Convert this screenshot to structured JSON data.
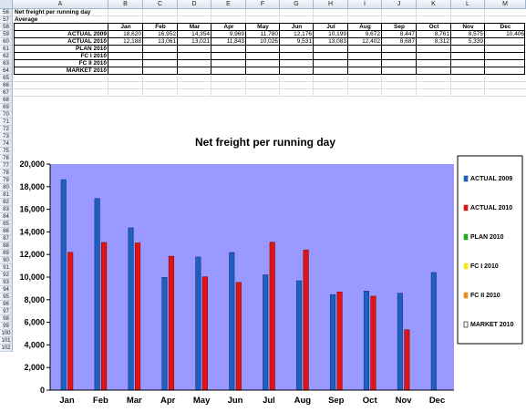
{
  "columns": [
    "A",
    "B",
    "C",
    "D",
    "E",
    "F",
    "G",
    "H",
    "I",
    "J",
    "K",
    "L",
    "M"
  ],
  "row_numbers": [
    56,
    57,
    58,
    59,
    60,
    61,
    62,
    63,
    64,
    65,
    66,
    67,
    68,
    69,
    70,
    71,
    72,
    73,
    74,
    75,
    76,
    77,
    78,
    79,
    80,
    81,
    82,
    83,
    84,
    85,
    86,
    87,
    88,
    89,
    90,
    91,
    92,
    93,
    94,
    95,
    96,
    97,
    98,
    99,
    100,
    101,
    102
  ],
  "sheet": {
    "title": "Net freight per running day",
    "subtitle": "Average",
    "months": [
      "Jan",
      "Feb",
      "Mar",
      "Apr",
      "May",
      "Jun",
      "Jul",
      "Aug",
      "Sep",
      "Oct",
      "Nov",
      "Dec"
    ],
    "rows": [
      {
        "label": "ACTUAL 2009",
        "values": [
          "18,620",
          "16,952",
          "14,354",
          "9,969",
          "11,780",
          "12,176",
          "10,199",
          "9,672",
          "8,447",
          "8,761",
          "8,575",
          "10,406"
        ]
      },
      {
        "label": "ACTUAL 2010",
        "values": [
          "12,188",
          "13,061",
          "13,021",
          "11,843",
          "10,026",
          "9,531",
          "13,083",
          "12,402",
          "8,687",
          "8,312",
          "5,339",
          ""
        ]
      },
      {
        "label": "PLAN 2010",
        "values": [
          "",
          "",
          "",
          "",
          "",
          "",
          "",
          "",
          "",
          "",
          "",
          ""
        ]
      },
      {
        "label": "FC I 2010",
        "values": [
          "",
          "",
          "",
          "",
          "",
          "",
          "",
          "",
          "",
          "",
          "",
          ""
        ]
      },
      {
        "label": "FC II 2010",
        "values": [
          "",
          "",
          "",
          "",
          "",
          "",
          "",
          "",
          "",
          "",
          "",
          ""
        ]
      },
      {
        "label": "MARKET 2010",
        "values": [
          "",
          "",
          "",
          "",
          "",
          "",
          "",
          "",
          "",
          "",
          "",
          ""
        ]
      }
    ]
  },
  "chart_data": {
    "type": "bar",
    "title": "Net freight per running day",
    "categories": [
      "Jan",
      "Feb",
      "Mar",
      "Apr",
      "May",
      "Jun",
      "Jul",
      "Aug",
      "Sep",
      "Oct",
      "Nov",
      "Dec"
    ],
    "series": [
      {
        "name": "ACTUAL 2009",
        "color": "#1f5fbf",
        "values": [
          18620,
          16952,
          14354,
          9969,
          11780,
          12176,
          10199,
          9672,
          8447,
          8761,
          8575,
          10406
        ]
      },
      {
        "name": "ACTUAL 2010",
        "color": "#e01414",
        "values": [
          12188,
          13061,
          13021,
          11843,
          10026,
          9531,
          13083,
          12402,
          8687,
          8312,
          5339,
          null
        ]
      },
      {
        "name": "PLAN 2010",
        "color": "#22aa22",
        "values": [
          null,
          null,
          null,
          null,
          null,
          null,
          null,
          null,
          null,
          null,
          null,
          null
        ]
      },
      {
        "name": "FC I 2010",
        "color": "#f5e614",
        "values": [
          null,
          null,
          null,
          null,
          null,
          null,
          null,
          null,
          null,
          null,
          null,
          null
        ]
      },
      {
        "name": "FC II 2010",
        "color": "#f08c1e",
        "values": [
          null,
          null,
          null,
          null,
          null,
          null,
          null,
          null,
          null,
          null,
          null,
          null
        ]
      },
      {
        "name": "MARKET 2010",
        "color": "#ffffff",
        "values": [
          null,
          null,
          null,
          null,
          null,
          null,
          null,
          null,
          null,
          null,
          null,
          null
        ]
      }
    ],
    "yticks": [
      "0",
      "2,000",
      "4,000",
      "6,000",
      "8,000",
      "10,000",
      "12,000",
      "14,000",
      "16,000",
      "18,000",
      "20,000"
    ],
    "ylim": [
      0,
      20000
    ],
    "legend_position": "right",
    "plot_background": "#9999ff"
  }
}
